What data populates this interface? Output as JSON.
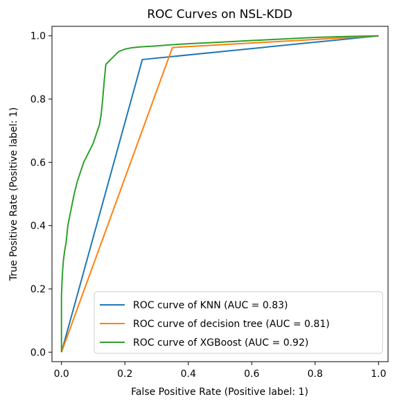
{
  "chart_data": {
    "type": "line",
    "title": "ROC Curves on NSL-KDD",
    "xlabel": "False Positive Rate (Positive label: 1)",
    "ylabel": "True Positive Rate (Positive label: 1)",
    "xlim": [
      -0.03,
      1.03
    ],
    "ylim": [
      -0.03,
      1.03
    ],
    "xticks": [
      0.0,
      0.2,
      0.4,
      0.6,
      0.8,
      1.0
    ],
    "yticks": [
      0.0,
      0.2,
      0.4,
      0.6,
      0.8,
      1.0
    ],
    "xtick_labels": [
      "0.0",
      "0.2",
      "0.4",
      "0.6",
      "0.8",
      "1.0"
    ],
    "ytick_labels": [
      "0.0",
      "0.2",
      "0.4",
      "0.6",
      "0.8",
      "1.0"
    ],
    "grid": false,
    "legend_position": "lower-right",
    "series": [
      {
        "name": "ROC curve of KNN (AUC = 0.83)",
        "color": "#1f77b4",
        "x": [
          0.0,
          0.255,
          1.0
        ],
        "y": [
          0.0,
          0.925,
          1.0
        ]
      },
      {
        "name": "ROC curve of decision tree (AUC = 0.81)",
        "color": "#ff7f0e",
        "x": [
          0.0,
          0.35,
          1.0
        ],
        "y": [
          0.0,
          0.963,
          1.0
        ]
      },
      {
        "name": "ROC curve of XGBoost (AUC = 0.92)",
        "color": "#2ca02c",
        "x": [
          0.0,
          0.0,
          0.003,
          0.006,
          0.01,
          0.015,
          0.02,
          0.03,
          0.04,
          0.05,
          0.06,
          0.07,
          0.08,
          0.09,
          0.1,
          0.11,
          0.12,
          0.125,
          0.13,
          0.135,
          0.14,
          0.145,
          0.15,
          0.16,
          0.17,
          0.18,
          0.2,
          0.22,
          0.25,
          0.3,
          0.35,
          0.4,
          0.5,
          0.6,
          0.7,
          0.8,
          0.9,
          1.0
        ],
        "y": [
          0.0,
          0.18,
          0.25,
          0.29,
          0.32,
          0.35,
          0.4,
          0.45,
          0.5,
          0.54,
          0.57,
          0.6,
          0.62,
          0.64,
          0.66,
          0.69,
          0.72,
          0.75,
          0.8,
          0.86,
          0.91,
          0.915,
          0.92,
          0.93,
          0.94,
          0.95,
          0.958,
          0.962,
          0.965,
          0.968,
          0.972,
          0.975,
          0.98,
          0.985,
          0.99,
          0.995,
          0.998,
          1.0
        ]
      }
    ]
  }
}
